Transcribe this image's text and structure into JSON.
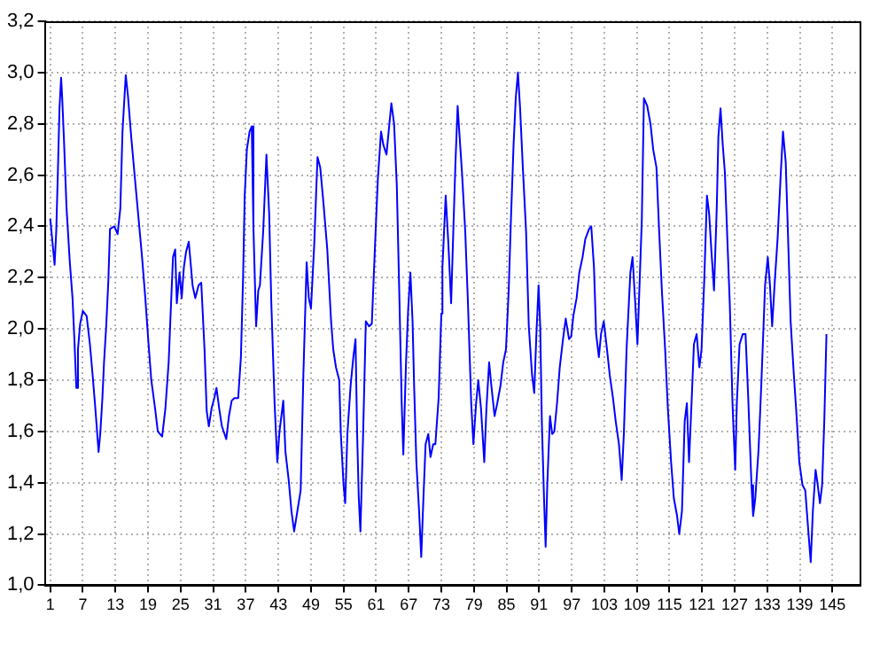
{
  "chart_data": {
    "type": "line",
    "grid": true,
    "marker": "none",
    "line_style": "solid",
    "legend": false,
    "xlim": [
      0,
      150
    ],
    "xticks": [
      1,
      7,
      13,
      19,
      25,
      31,
      37,
      43,
      49,
      55,
      61,
      67,
      73,
      79,
      85,
      91,
      97,
      103,
      109,
      115,
      121,
      127,
      133,
      139,
      145
    ],
    "ylim": [
      1,
      3.2
    ],
    "yticks": [
      {
        "value": 1,
        "label": "1,0"
      },
      {
        "value": 1.2,
        "label": "1,2"
      },
      {
        "value": 1.4,
        "label": "1,4"
      },
      {
        "value": 1.6,
        "label": "1,6"
      },
      {
        "value": 1.8,
        "label": "1,8"
      },
      {
        "value": 2,
        "label": "2,0"
      },
      {
        "value": 2.2,
        "label": "2,2"
      },
      {
        "value": 2.4,
        "label": "2,4"
      },
      {
        "value": 2.6,
        "label": "2,6"
      },
      {
        "value": 2.8,
        "label": "2,8"
      },
      {
        "value": 3,
        "label": "3,0"
      },
      {
        "value": 3.2,
        "label": "3,2"
      }
    ],
    "series": [
      {
        "color": "#0000ff",
        "x": [
          1,
          1.4,
          1.8,
          2.1,
          2.4,
          2.7,
          3.0,
          3.2,
          3.5,
          4.0,
          4.6,
          5.1,
          5.4,
          5.8,
          6.1,
          6.5,
          7.0,
          7.7,
          8.3,
          8.8,
          9.3,
          9.9,
          10.2,
          10.6,
          10.9,
          11.3,
          11.7,
          12.0,
          12.8,
          13.4,
          13.9,
          14.3,
          14.9,
          15.3,
          15.9,
          16.7,
          17.3,
          17.9,
          18.5,
          19.1,
          19.6,
          20.3,
          20.8,
          21.6,
          22.2,
          22.8,
          23.2,
          23.6,
          24.0,
          24.3,
          24.8,
          25.2,
          25.6,
          26.0,
          26.5,
          27.2,
          27.7,
          28.3,
          28.8,
          29.4,
          29.8,
          30.2,
          30.7,
          31.2,
          31.6,
          32.1,
          32.6,
          33.4,
          33.9,
          34.4,
          34.9,
          35.6,
          36.1,
          36.5,
          36.8,
          37.2,
          37.7,
          38.1,
          38.4,
          38.9,
          39.3,
          39.6,
          40.2,
          40.8,
          41.3,
          41.7,
          42.3,
          42.8,
          43.2,
          43.9,
          44.3,
          44.9,
          45.4,
          45.9,
          46.5,
          47.1,
          47.6,
          48.2,
          48.6,
          49.0,
          49.6,
          50.2,
          50.7,
          51.3,
          52.0,
          52.7,
          53.1,
          53.6,
          54.2,
          54.5,
          55.0,
          55.3,
          55.7,
          56.3,
          56.8,
          57.2,
          57.5,
          57.8,
          58.1,
          58.6,
          59.1,
          59.7,
          60.2,
          60.8,
          61.3,
          61.9,
          62.3,
          62.9,
          63.3,
          63.8,
          64.3,
          64.8,
          65.3,
          65.7,
          66.0,
          66.5,
          66.9,
          67.3,
          67.7,
          68.0,
          68.4,
          68.9,
          69.3,
          69.7,
          70.1,
          70.6,
          71.0,
          71.5,
          71.9,
          72.5,
          73.0,
          73.2,
          73.8,
          74.3,
          74.8,
          75.2,
          75.6,
          76.0,
          76.3,
          76.8,
          77.4,
          77.9,
          78.5,
          78.9,
          79.4,
          79.8,
          80.3,
          80.9,
          81.3,
          81.8,
          82.2,
          82.8,
          83.3,
          83.9,
          84.4,
          84.9,
          85.4,
          85.8,
          86.3,
          86.7,
          87.1,
          87.5,
          88.0,
          88.6,
          89.1,
          89.7,
          90.1,
          90.5,
          90.9,
          91.2,
          91.5,
          91.9,
          92.2,
          92.5,
          93.0,
          93.4,
          93.8,
          94.3,
          94.8,
          95.4,
          95.9,
          96.5,
          96.9,
          97.3,
          97.9,
          98.4,
          99.0,
          99.5,
          100.2,
          100.6,
          101.1,
          101.5,
          102.0,
          102.4,
          102.9,
          103.5,
          104.0,
          104.6,
          105.1,
          105.7,
          106.2,
          106.6,
          107.1,
          107.8,
          108.2,
          108.7,
          109.1,
          109.9,
          110.3,
          110.9,
          111.5,
          112.0,
          112.6,
          113.1,
          113.6,
          114.2,
          114.7,
          115.3,
          115.8,
          116.4,
          116.8,
          117.3,
          117.8,
          118.2,
          118.6,
          119.1,
          119.5,
          120.0,
          120.5,
          120.9,
          121.4,
          121.9,
          122.3,
          122.7,
          123.2,
          123.7,
          124.0,
          124.4,
          124.8,
          125.2,
          125.6,
          126.1,
          126.6,
          127.1,
          127.4,
          127.9,
          128.5,
          129.0,
          129.5,
          130.1,
          130.4,
          130.8,
          131.4,
          131.9,
          132.6,
          133.1,
          133.5,
          133.9,
          134.4,
          134.9,
          135.5,
          135.9,
          136.4,
          136.8,
          137.3,
          137.9,
          138.4,
          138.9,
          139.5,
          140.0,
          140.6,
          141.0,
          141.4,
          141.9,
          142.3,
          142.7,
          143.1,
          143.5,
          143.9
        ],
        "values": [
          2.43,
          2.34,
          2.25,
          2.38,
          2.61,
          2.86,
          2.98,
          2.9,
          2.75,
          2.47,
          2.26,
          2.12,
          1.98,
          1.77,
          1.92,
          2.02,
          2.07,
          2.05,
          1.94,
          1.82,
          1.69,
          1.52,
          1.59,
          1.73,
          1.87,
          2.01,
          2.19,
          2.39,
          2.4,
          2.37,
          2.47,
          2.77,
          2.99,
          2.91,
          2.75,
          2.56,
          2.42,
          2.28,
          2.12,
          1.94,
          1.8,
          1.69,
          1.6,
          1.58,
          1.69,
          1.87,
          2.08,
          2.28,
          2.31,
          2.1,
          2.22,
          2.12,
          2.24,
          2.3,
          2.34,
          2.17,
          2.12,
          2.17,
          2.18,
          1.92,
          1.68,
          1.62,
          1.69,
          1.73,
          1.77,
          1.69,
          1.62,
          1.57,
          1.66,
          1.72,
          1.73,
          1.73,
          1.89,
          2.2,
          2.52,
          2.7,
          2.77,
          2.79,
          2.4,
          2.01,
          2.15,
          2.17,
          2.38,
          2.68,
          2.45,
          2.1,
          1.71,
          1.48,
          1.6,
          1.72,
          1.52,
          1.41,
          1.29,
          1.21,
          1.29,
          1.37,
          1.82,
          2.26,
          2.12,
          2.08,
          2.33,
          2.67,
          2.63,
          2.49,
          2.31,
          2.03,
          1.92,
          1.85,
          1.8,
          1.59,
          1.39,
          1.32,
          1.59,
          1.78,
          1.89,
          1.96,
          1.59,
          1.34,
          1.21,
          1.59,
          2.03,
          2.01,
          2.02,
          2.33,
          2.58,
          2.77,
          2.72,
          2.68,
          2.77,
          2.88,
          2.8,
          2.56,
          2.1,
          1.71,
          1.51,
          1.87,
          2.08,
          2.22,
          2.03,
          1.77,
          1.48,
          1.29,
          1.11,
          1.34,
          1.55,
          1.59,
          1.5,
          1.55,
          1.55,
          1.73,
          2.06,
          2.24,
          2.52,
          2.33,
          2.1,
          2.38,
          2.65,
          2.87,
          2.77,
          2.61,
          2.38,
          2.1,
          1.71,
          1.55,
          1.71,
          1.8,
          1.69,
          1.48,
          1.69,
          1.87,
          1.78,
          1.66,
          1.71,
          1.78,
          1.87,
          1.92,
          2.15,
          2.42,
          2.72,
          2.9,
          3.0,
          2.86,
          2.63,
          2.38,
          2.01,
          1.82,
          1.75,
          1.98,
          2.17,
          2.01,
          1.64,
          1.34,
          1.15,
          1.39,
          1.66,
          1.59,
          1.6,
          1.71,
          1.85,
          1.96,
          2.04,
          1.96,
          1.97,
          2.05,
          2.12,
          2.22,
          2.28,
          2.35,
          2.39,
          2.4,
          2.24,
          1.98,
          1.89,
          1.98,
          2.03,
          1.92,
          1.82,
          1.73,
          1.64,
          1.55,
          1.41,
          1.59,
          1.92,
          2.22,
          2.28,
          2.1,
          1.94,
          2.42,
          2.9,
          2.87,
          2.8,
          2.7,
          2.63,
          2.38,
          2.15,
          1.92,
          1.69,
          1.48,
          1.34,
          1.27,
          1.2,
          1.29,
          1.64,
          1.71,
          1.48,
          1.73,
          1.94,
          1.98,
          1.85,
          1.92,
          2.19,
          2.52,
          2.45,
          2.31,
          2.15,
          2.47,
          2.75,
          2.86,
          2.72,
          2.61,
          2.38,
          2.1,
          1.71,
          1.45,
          1.71,
          1.94,
          1.98,
          1.98,
          1.73,
          1.39,
          1.27,
          1.34,
          1.53,
          1.78,
          2.17,
          2.28,
          2.17,
          2.01,
          2.19,
          2.35,
          2.61,
          2.77,
          2.65,
          2.38,
          2.03,
          1.82,
          1.66,
          1.48,
          1.39,
          1.37,
          1.2,
          1.09,
          1.29,
          1.45,
          1.39,
          1.32,
          1.39,
          1.64,
          1.98
        ]
      }
    ]
  }
}
